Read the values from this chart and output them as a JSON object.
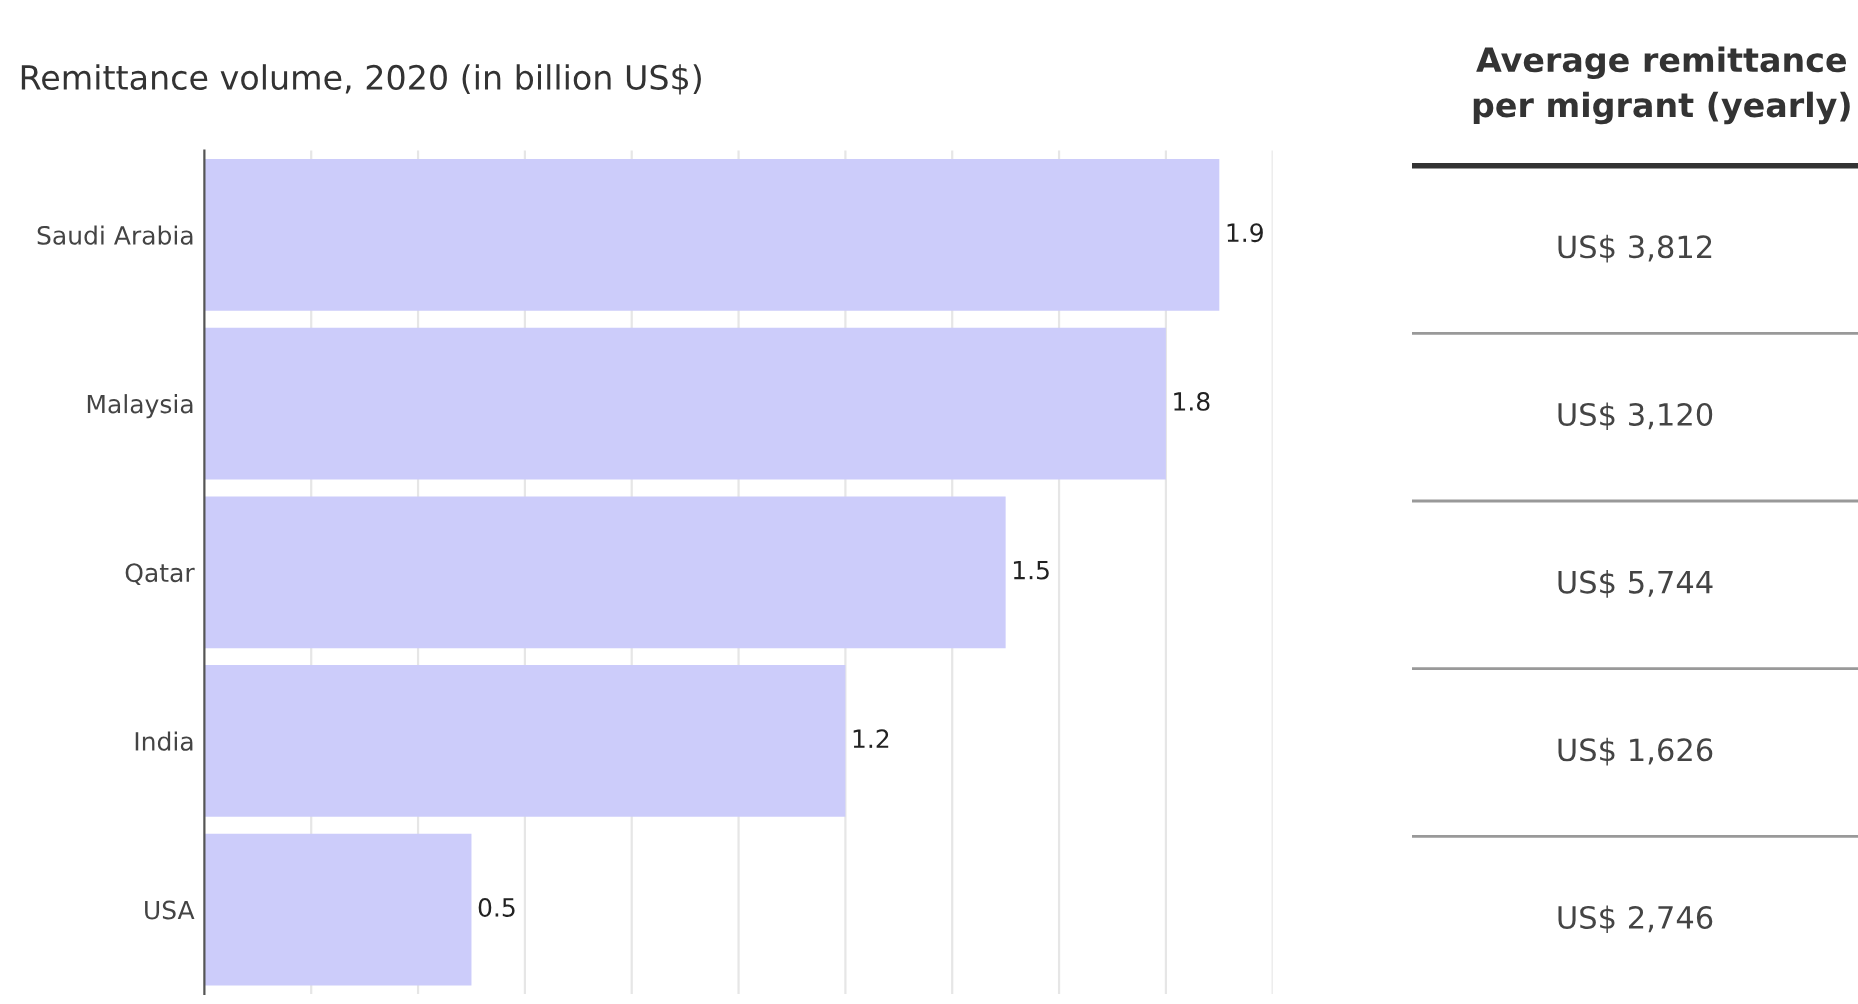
{
  "chart_data": [
    {
      "type": "bar",
      "orientation": "horizontal",
      "title": "Remittance volume, 2020 (in billion US$)",
      "categories": [
        "Saudi Arabia",
        "Malaysia",
        "Qatar",
        "India",
        "USA"
      ],
      "values": [
        1.9,
        1.8,
        1.5,
        1.2,
        0.5
      ],
      "color": "#ccccfa",
      "data_labels": true,
      "xlim": [
        0,
        2.0
      ],
      "xticks": [
        {
          "value": 0.2,
          "label": null
        },
        {
          "value": 0.4,
          "label": null
        },
        {
          "value": 0.6,
          "label": null
        },
        {
          "value": 0.8,
          "label": null
        },
        {
          "value": 1.0,
          "label": null
        },
        {
          "value": 1.2,
          "label": null
        },
        {
          "value": 1.4,
          "label": null
        },
        {
          "value": 1.6,
          "label": null
        },
        {
          "value": 1.8,
          "label": null
        },
        {
          "value": 2.0,
          "label": null
        }
      ],
      "grid": "x",
      "tick_labels": "y"
    },
    {
      "type": "other",
      "title": "Average remittance\nper migrant (yearly)",
      "annotations": [
        "US$ 3,812",
        "US$ 3,120",
        "US$ 5,744",
        "US$ 1,626",
        "US$ 2,746"
      ]
    }
  ]
}
